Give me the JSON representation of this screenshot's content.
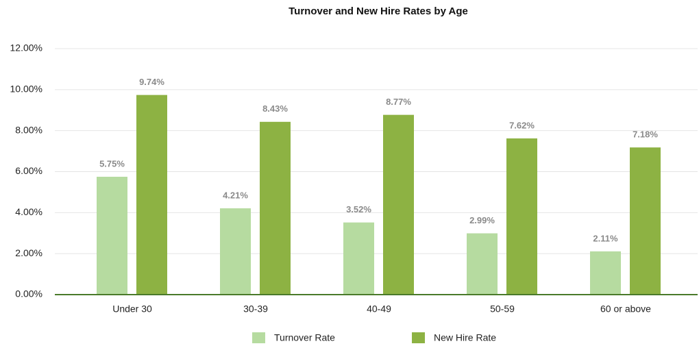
{
  "chart_data": {
    "type": "bar",
    "title": "Turnover and New Hire Rates by Age",
    "categories": [
      "Under 30",
      "30-39",
      "40-49",
      "50-59",
      "60 or above"
    ],
    "series": [
      {
        "name": "Turnover Rate",
        "color": "#b6dba0",
        "values": [
          5.75,
          4.21,
          3.52,
          2.99,
          2.11
        ],
        "value_labels": [
          "5.75%",
          "4.21%",
          "3.52%",
          "2.99%",
          "2.11%"
        ]
      },
      {
        "name": "New Hire Rate",
        "color": "#8db243",
        "values": [
          9.74,
          8.43,
          8.77,
          7.62,
          7.18
        ],
        "value_labels": [
          "9.74%",
          "8.43%",
          "8.77%",
          "7.62%",
          "7.18%"
        ]
      }
    ],
    "ylim": [
      0,
      12
    ],
    "yticks": [
      {
        "value": 0,
        "label": "0.00%"
      },
      {
        "value": 2,
        "label": "2.00%"
      },
      {
        "value": 4,
        "label": "4.00%"
      },
      {
        "value": 6,
        "label": "6.00%"
      },
      {
        "value": 8,
        "label": "8.00%"
      },
      {
        "value": 10,
        "label": "10.00%"
      },
      {
        "value": 12,
        "label": "12.00%"
      }
    ],
    "grid": true,
    "legend": "bottom"
  }
}
